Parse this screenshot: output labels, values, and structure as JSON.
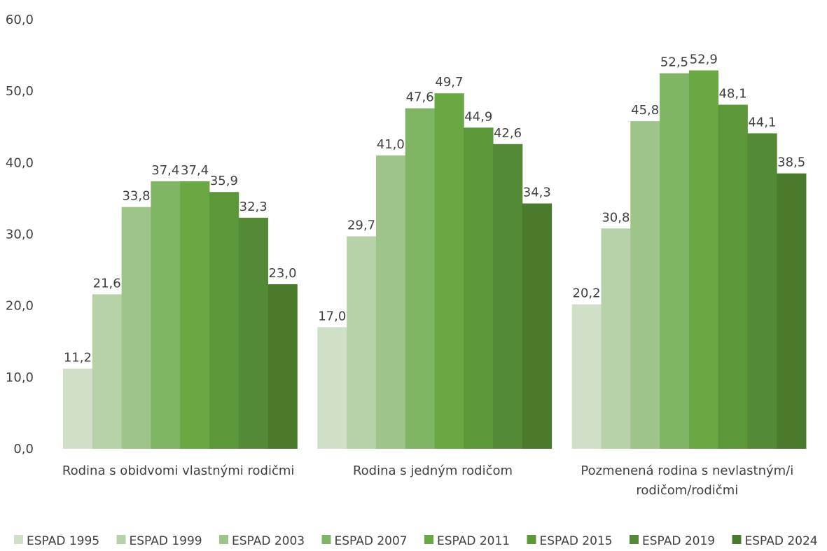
{
  "chart_data": {
    "type": "bar",
    "title": "",
    "xlabel": "",
    "ylabel": "",
    "ylim": [
      0,
      60
    ],
    "yticks": [
      "0,0",
      "10,0",
      "20,0",
      "30,0",
      "40,0",
      "50,0",
      "60,0"
    ],
    "grid": false,
    "legend_position": "bottom",
    "categories": [
      [
        "Rodina s obidvomi vlastnými rodičmi"
      ],
      [
        "Rodina s jedným rodičom"
      ],
      [
        "Pozmenená rodina s nevlastným/i",
        "rodičom/rodičmi"
      ]
    ],
    "series": [
      {
        "name": "ESPAD 1995",
        "color": "#d0e0c8",
        "values": [
          11.2,
          17.0,
          20.2
        ],
        "labels": [
          "11,2",
          "17,0",
          "20,2"
        ]
      },
      {
        "name": "ESPAD 1999",
        "color": "#b7d2a8",
        "values": [
          21.6,
          29.7,
          30.8
        ],
        "labels": [
          "21,6",
          "29,7",
          "30,8"
        ]
      },
      {
        "name": "ESPAD 2003",
        "color": "#9fc48a",
        "values": [
          33.8,
          41.0,
          45.8
        ],
        "labels": [
          "33,8",
          "41,0",
          "45,8"
        ]
      },
      {
        "name": "ESPAD 2007",
        "color": "#80b566",
        "values": [
          37.4,
          47.6,
          52.5
        ],
        "labels": [
          "37,4",
          "47,6",
          "52,5"
        ]
      },
      {
        "name": "ESPAD 2011",
        "color": "#6aa843",
        "values": [
          37.4,
          49.7,
          52.9
        ],
        "labels": [
          "37,4",
          "49,7",
          "52,9"
        ]
      },
      {
        "name": "ESPAD 2015",
        "color": "#5c973a",
        "values": [
          35.9,
          44.9,
          48.1
        ],
        "labels": [
          "35,9",
          "44,9",
          "48,1"
        ]
      },
      {
        "name": "ESPAD 2019",
        "color": "#548935",
        "values": [
          32.3,
          42.6,
          44.1
        ],
        "labels": [
          "32,3",
          "42,6",
          "44,1"
        ]
      },
      {
        "name": "ESPAD 2024",
        "color": "#4a7b2d",
        "values": [
          23.0,
          34.3,
          38.5
        ],
        "labels": [
          "23,0",
          "34,3",
          "38,5"
        ]
      }
    ]
  }
}
